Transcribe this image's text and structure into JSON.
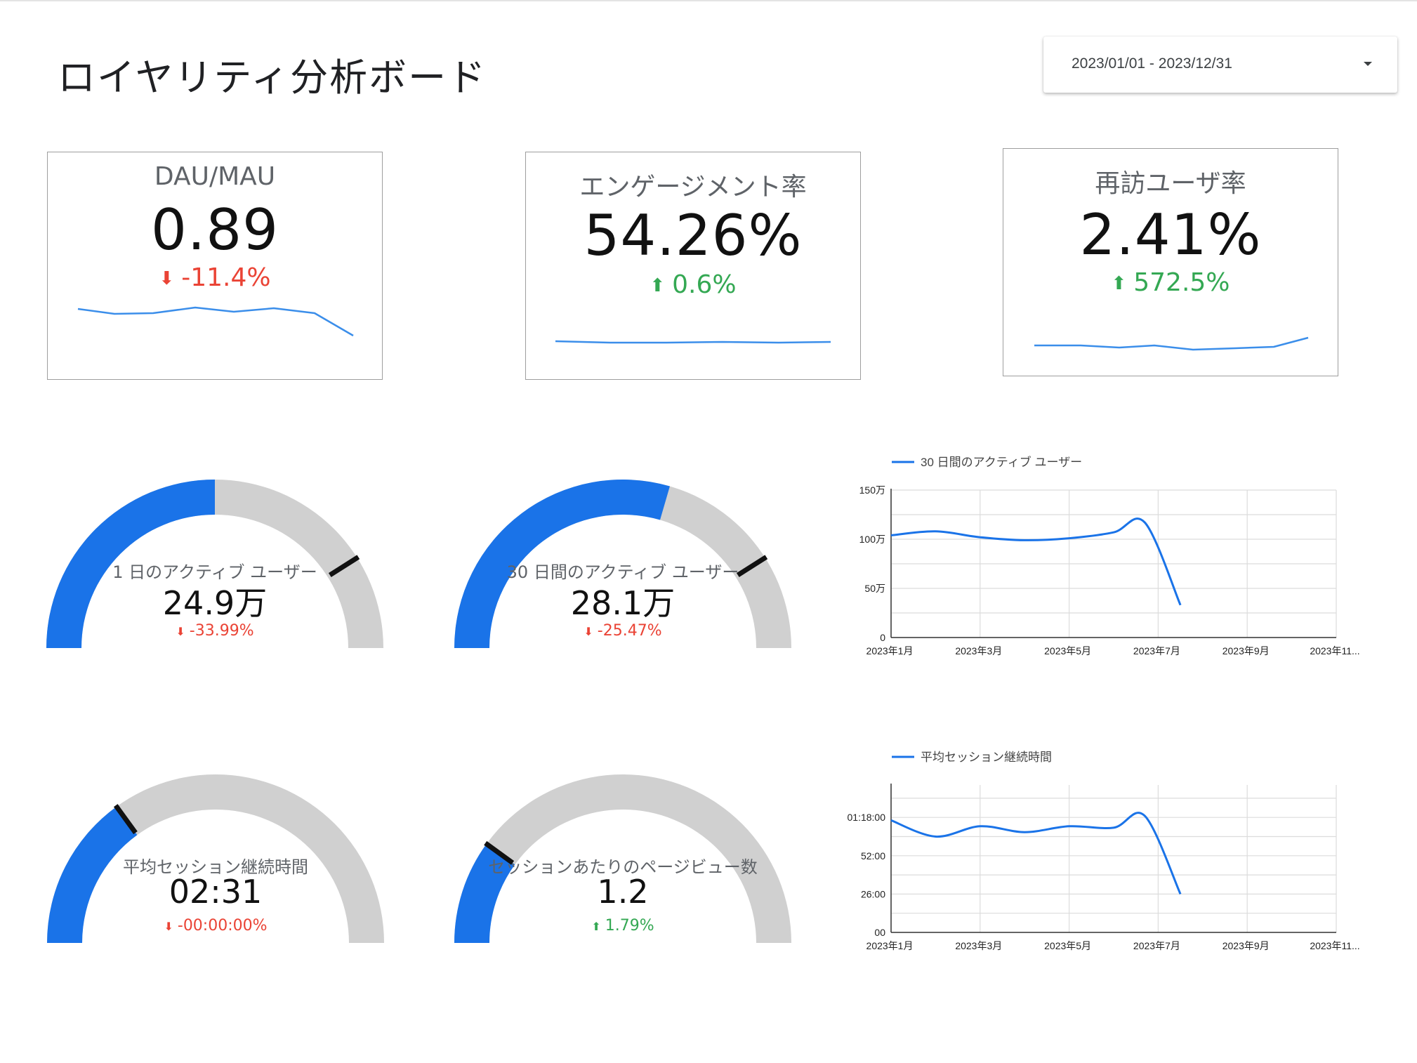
{
  "page": {
    "title": "ロイヤリティ分析ボード"
  },
  "date_range": {
    "label": "2023/01/01 - 2023/12/31"
  },
  "colors": {
    "accent": "#1a73e8",
    "spark": "#3b8eea",
    "negative": "#ea4335",
    "positive": "#34a853",
    "gauge_bg": "#d0d0d0"
  },
  "kpis": [
    {
      "title": "DAU/MAU",
      "value": "0.89",
      "delta": "-11.4%",
      "direction": "down"
    },
    {
      "title": "エンゲージメント率",
      "value": "54.26%",
      "delta": "0.6%",
      "direction": "up"
    },
    {
      "title": "再訪ユーザ率",
      "value": "2.41%",
      "delta": "572.5%",
      "direction": "up"
    }
  ],
  "gauges": [
    {
      "label": "1 日のアクティブ ユーザー",
      "value": "24.9万",
      "delta": "-33.99%",
      "direction": "down",
      "fill_fraction": 0.5,
      "target_fraction": 0.82
    },
    {
      "label": "30 日間のアクティブ ユーザー",
      "value": "28.1万",
      "delta": "-25.47%",
      "direction": "down",
      "fill_fraction": 0.59,
      "target_fraction": 0.82
    },
    {
      "label": "平均セッション継続時間",
      "value": "02:31",
      "delta": "-00:00:00%",
      "direction": "down",
      "fill_fraction": 0.3,
      "target_fraction": 0.3
    },
    {
      "label": "セッションあたりのページビュー数",
      "value": "1.2",
      "delta": "1.79%",
      "direction": "up",
      "fill_fraction": 0.2,
      "target_fraction": 0.2
    }
  ],
  "chart_data": [
    {
      "type": "line",
      "legend": "30 日間のアクティブ ユーザー",
      "legend_position": "top-left",
      "grid": true,
      "x_ticks": [
        "2023年1月",
        "2023年3月",
        "2023年5月",
        "2023年7月",
        "2023年9月",
        "2023年11..."
      ],
      "y_ticks": [
        "0",
        "50万",
        "100万",
        "150万"
      ],
      "y_tick_values": [
        0,
        50,
        100,
        150
      ],
      "ylim": [
        0,
        150
      ],
      "x_months": [
        0,
        1,
        2,
        3,
        4,
        5,
        5.7,
        6.5
      ],
      "values": [
        104,
        108,
        102,
        99,
        101,
        107,
        117,
        33
      ]
    },
    {
      "type": "line",
      "legend": "平均セッション継続時間",
      "legend_position": "top-left",
      "grid": true,
      "x_ticks": [
        "2023年1月",
        "2023年3月",
        "2023年5月",
        "2023年7月",
        "2023年9月",
        "2023年11..."
      ],
      "y_ticks": [
        "00",
        "26:00",
        "52:00",
        "01:18:00"
      ],
      "y_tick_values": [
        0,
        26,
        52,
        78
      ],
      "ylim": [
        0,
        100
      ],
      "x_months": [
        0,
        1,
        2,
        3,
        4,
        5,
        5.7,
        6.5
      ],
      "values": [
        76,
        65,
        72,
        68,
        72,
        71,
        79,
        26
      ]
    }
  ]
}
